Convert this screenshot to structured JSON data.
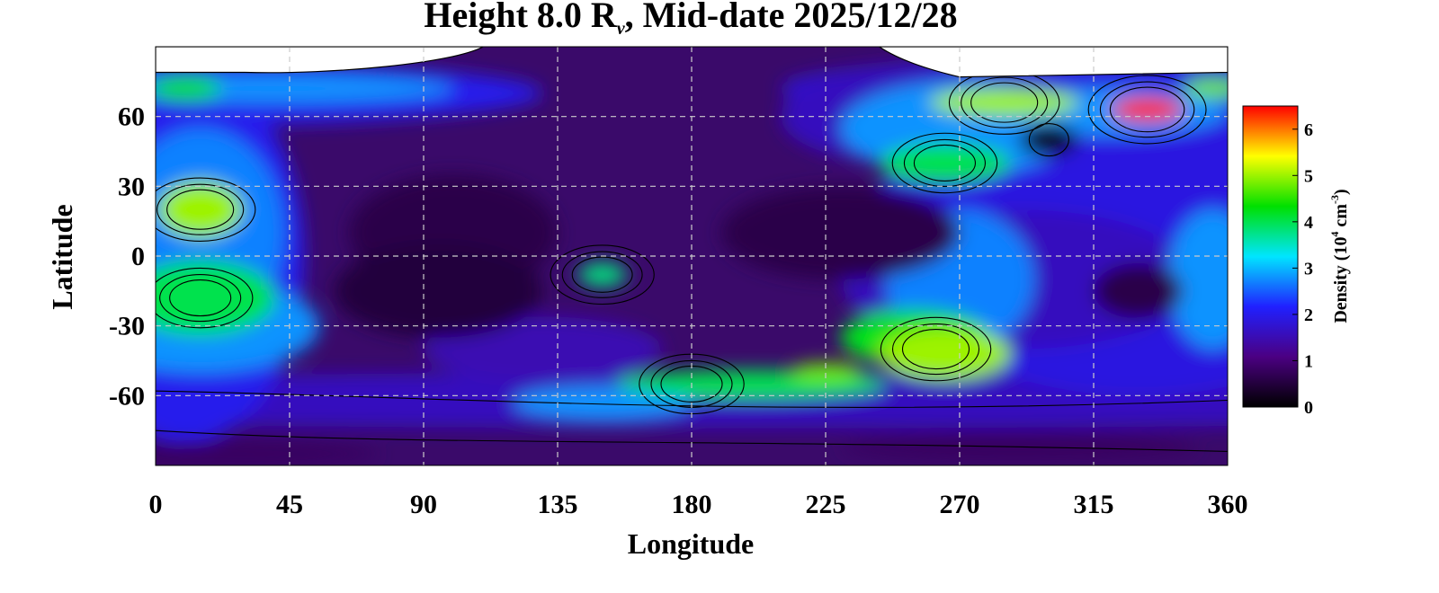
{
  "chart_data": {
    "type": "heatmap",
    "title": {
      "prefix": "Height 8.0 R",
      "sub": "ν",
      "suffix": ", Mid-date 2025/12/28"
    },
    "xlabel": "Longitude",
    "ylabel": "Latitude",
    "xlim": [
      0,
      360
    ],
    "ylim": [
      -90,
      90
    ],
    "x_ticks": [
      "0",
      "45",
      "90",
      "135",
      "180",
      "225",
      "270",
      "315",
      "360"
    ],
    "y_ticks": [
      "60",
      "30",
      "0",
      "-30",
      "-60"
    ],
    "colorbar": {
      "label": {
        "prefix": "Density (10",
        "sup1": "4",
        "mid": " cm",
        "sup2": "-3",
        "suffix": ")"
      },
      "range": [
        0,
        6.5
      ],
      "ticks": [
        "0",
        "1",
        "2",
        "3",
        "4",
        "5",
        "6"
      ],
      "colors": [
        "#000000",
        "#4b0082",
        "#2020ff",
        "#00e5ff",
        "#00e000",
        "#ffff00",
        "#ff0000"
      ]
    },
    "grid": true,
    "contour_lines": true,
    "features": [
      {
        "lon": 333,
        "lat": 63,
        "density": 6.4
      },
      {
        "lon": 262,
        "lat": -40,
        "density": 5.0
      },
      {
        "lon": 285,
        "lat": 66,
        "density": 5.0
      },
      {
        "lon": 15,
        "lat": 20,
        "density": 5.0
      },
      {
        "lon": 15,
        "lat": -18,
        "density": 4.0
      },
      {
        "lon": 265,
        "lat": 40,
        "density": 4.0
      },
      {
        "lon": 180,
        "lat": -55,
        "density": 4.0
      },
      {
        "lon": 150,
        "lat": -8,
        "density": 3.8
      },
      {
        "lon": 300,
        "lat": 50,
        "density": 0.1
      }
    ]
  }
}
